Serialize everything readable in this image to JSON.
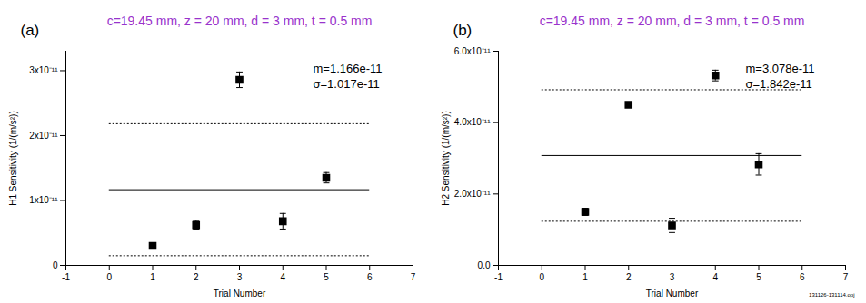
{
  "chart_data": [
    {
      "type": "scatter",
      "panel_label": "(a)",
      "title": "c=19.45 mm, z = 20 mm, d = 3 mm, t = 0.5 mm",
      "x_label": "Trial Number",
      "y_label": "H1 Sensitivity (1/(m/s²))",
      "x": [
        1,
        2,
        3,
        4,
        5
      ],
      "values": [
        3e-12,
        6.2e-12,
        2.86e-11,
        6.8e-12,
        1.35e-11
      ],
      "errors": [
        3e-13,
        6e-13,
        1.2e-12,
        1.2e-12,
        8e-13
      ],
      "color": "#000000",
      "marker": "square",
      "xlim": [
        -1,
        7
      ],
      "xticks": [
        -1,
        0,
        1,
        2,
        3,
        4,
        5,
        6,
        7
      ],
      "ylim": [
        0,
        3.3e-11
      ],
      "yticks": [
        0,
        {
          "value": 1e-11,
          "label": "1x10⁻¹¹"
        },
        {
          "value": 2e-11,
          "label": "2x10⁻¹¹"
        },
        {
          "value": 3e-11,
          "label": "3x10⁻¹¹"
        }
      ],
      "reference_lines": [
        {
          "value": 1.166e-11,
          "x_range": [
            0,
            6
          ],
          "line_style": "solid"
        },
        {
          "value": 2.183e-11,
          "x_range": [
            0,
            6
          ],
          "line_style": "dotted"
        },
        {
          "value": 1.49e-12,
          "x_range": [
            0,
            6
          ],
          "line_style": "dotted"
        }
      ],
      "annotations": [
        "m=1.166e-11",
        "σ=1.017e-11"
      ]
    },
    {
      "type": "scatter",
      "panel_label": "(b)",
      "title": "c=19.45 mm, z = 20 mm, d = 3 mm, t = 0.5 mm",
      "x_label": "Trial Number",
      "y_label": "H2 Sensitivity (1/(m/s²))",
      "x": [
        1,
        2,
        3,
        4,
        5
      ],
      "values": [
        1.5e-11,
        4.5e-11,
        1.12e-11,
        5.32e-11,
        2.83e-11
      ],
      "errors": [
        1e-12,
        5e-13,
        2e-12,
        1.5e-12,
        3e-12
      ],
      "color": "#000000",
      "marker": "square",
      "xlim": [
        -1,
        7
      ],
      "xticks": [
        -1,
        0,
        1,
        2,
        3,
        4,
        5,
        6,
        7
      ],
      "ylim": [
        0,
        6e-11
      ],
      "yticks": [
        {
          "value": 0,
          "label": "0.0"
        },
        {
          "value": 2e-11,
          "label": "2.0x10⁻¹¹"
        },
        {
          "value": 4e-11,
          "label": "4.0x10⁻¹¹"
        },
        {
          "value": 6e-11,
          "label": "6.0x10⁻¹¹"
        }
      ],
      "reference_lines": [
        {
          "value": 3.078e-11,
          "x_range": [
            0,
            6
          ],
          "line_style": "solid"
        },
        {
          "value": 4.92e-11,
          "x_range": [
            0,
            6
          ],
          "line_style": "dotted"
        },
        {
          "value": 1.236e-11,
          "x_range": [
            0,
            6
          ],
          "line_style": "dotted"
        }
      ],
      "annotations": [
        "m=3.078e-11",
        "σ=1.842e-11"
      ],
      "footnote": "131126-131114.opj"
    }
  ]
}
